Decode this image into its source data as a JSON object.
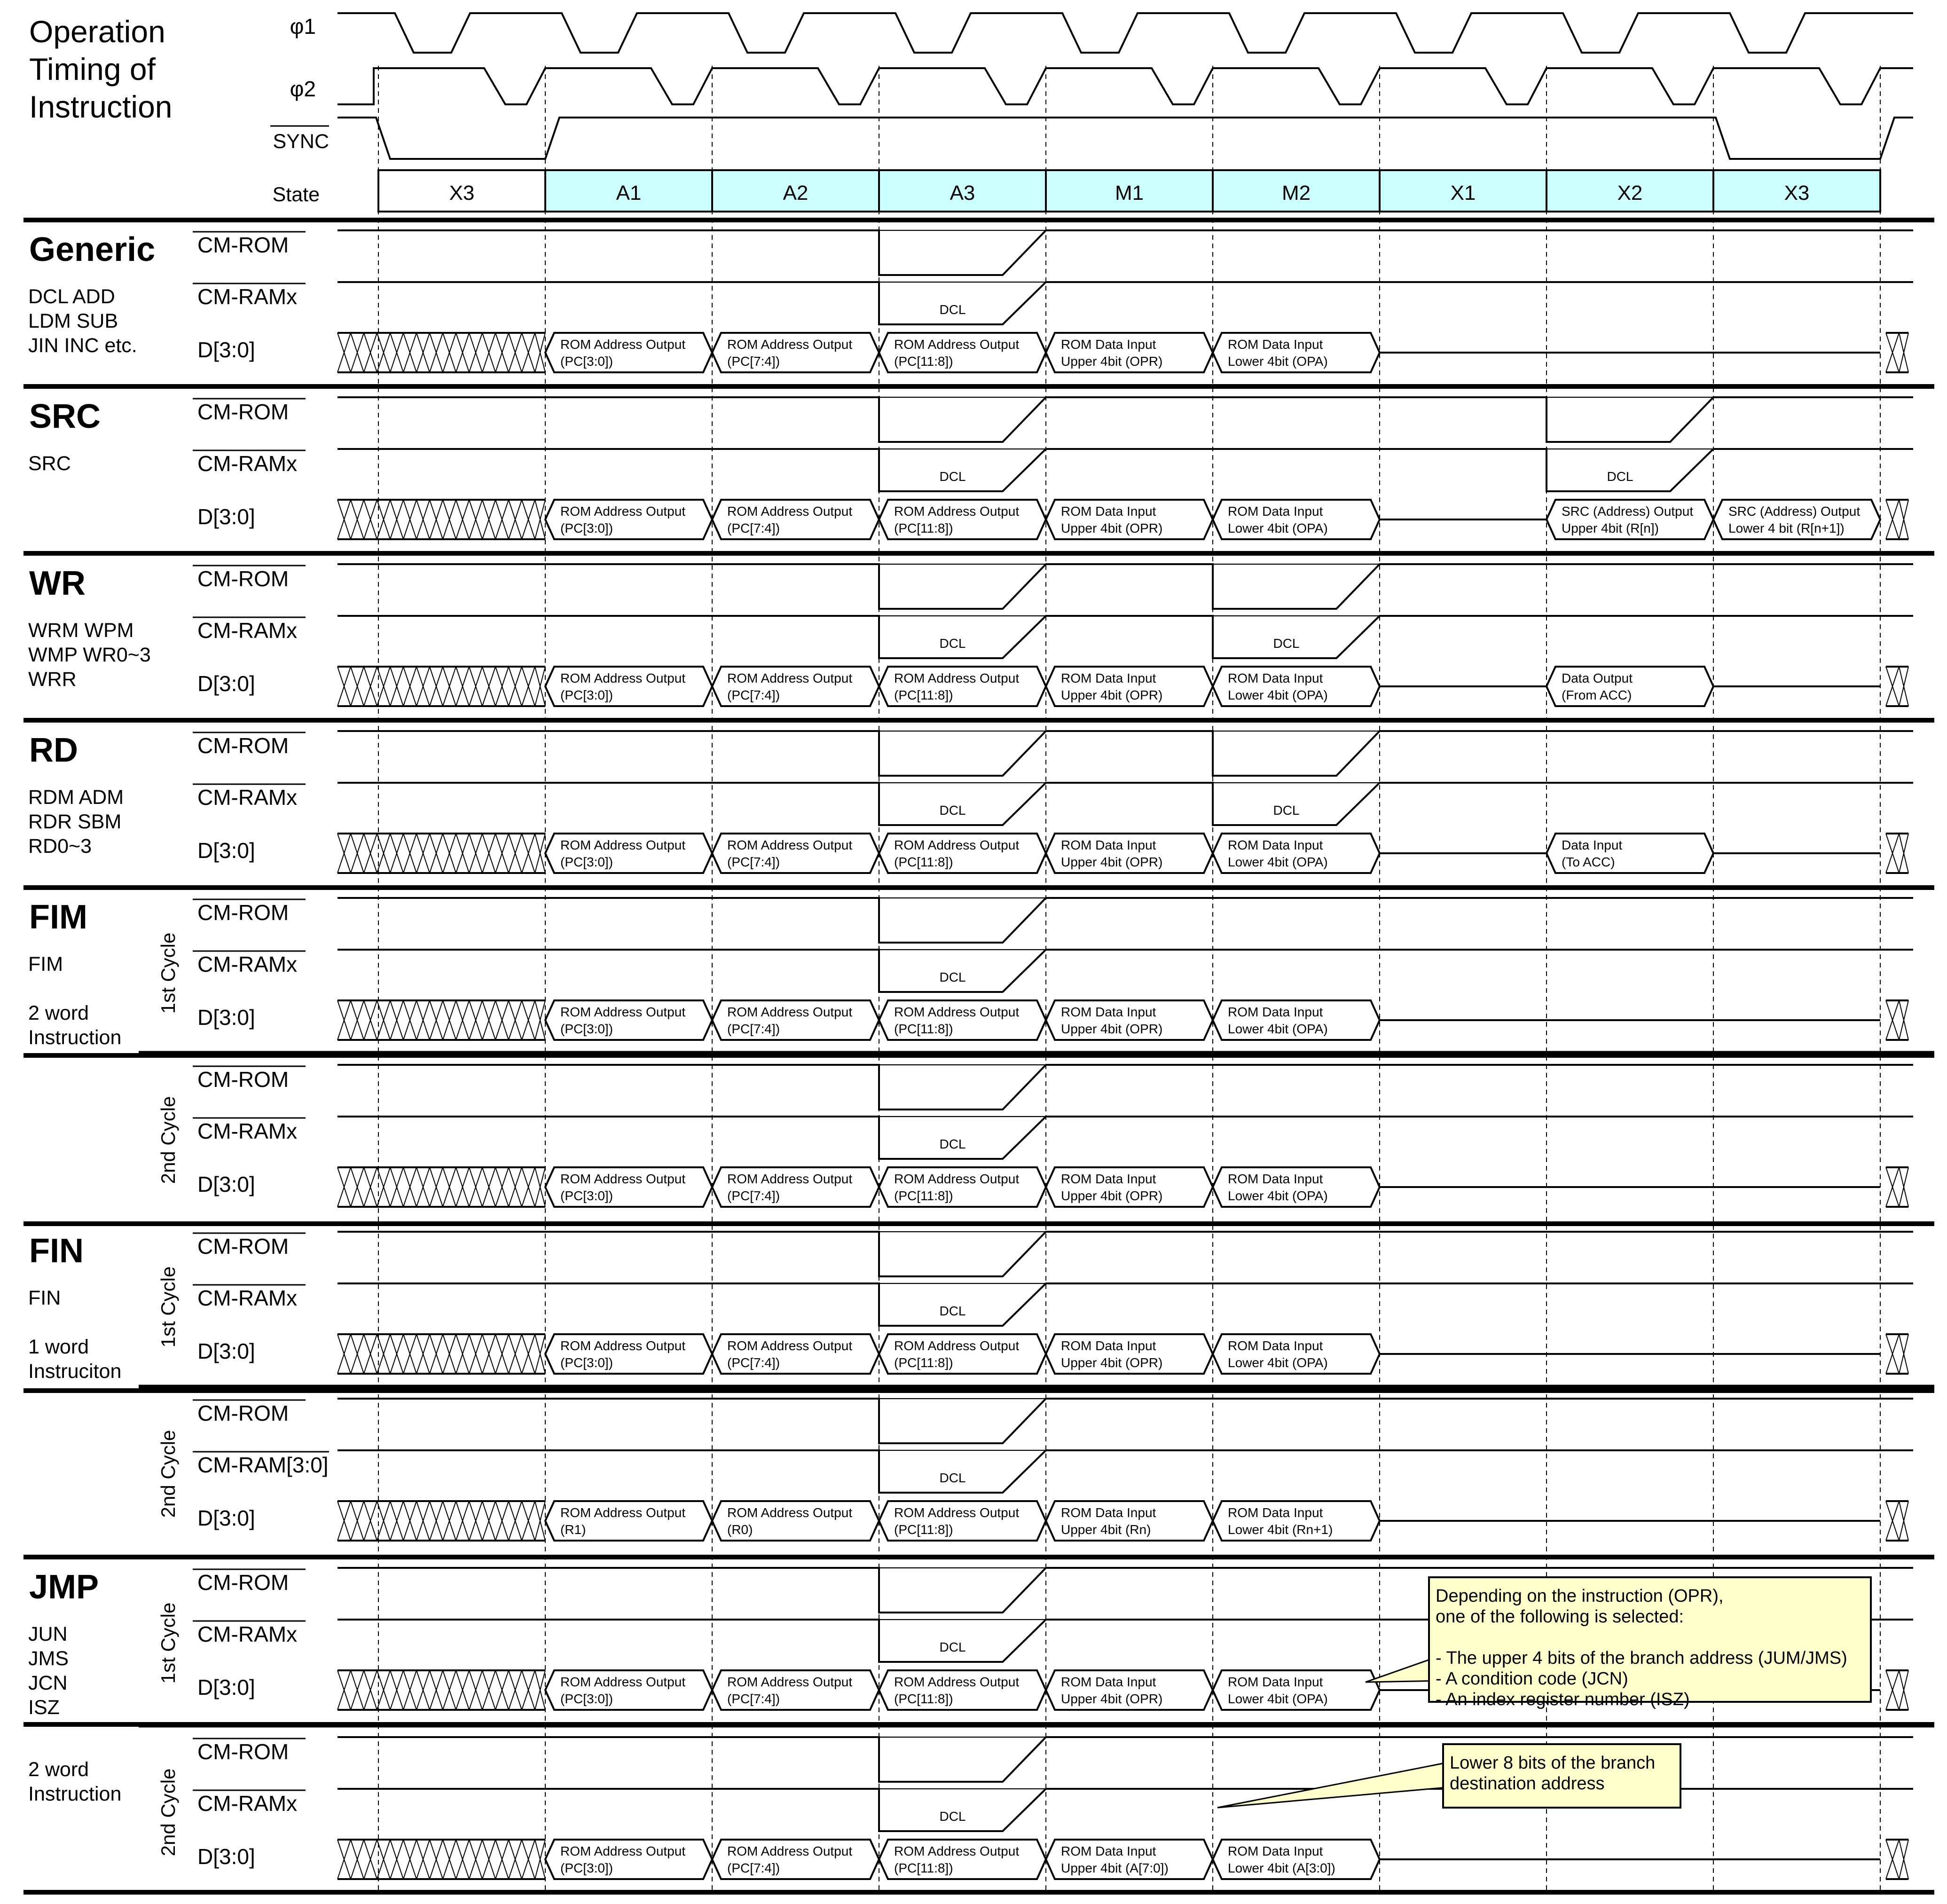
{
  "title": [
    "Operation",
    "Timing of",
    "Instruction"
  ],
  "clock_labels": {
    "phi1": "φ1",
    "phi2": "φ2",
    "sync": "SYNC",
    "state": "State"
  },
  "states": [
    "X3",
    "A1",
    "A2",
    "A3",
    "M1",
    "M2",
    "X1",
    "X2",
    "X3"
  ],
  "signal_names": {
    "cm_rom": "CM-ROM",
    "cm_ramx": "CM-RAMx",
    "cm_ram30": "CM-RAM[3:0]",
    "d": "D[3:0]"
  },
  "dcl": "DCL",
  "cycle_labels": {
    "first": "1st Cycle",
    "second": "2nd Cycle"
  },
  "blocks": [
    {
      "title": "Generic",
      "subs": [
        "DCL    ADD",
        "LDM    SUB",
        "JIN     INC etc."
      ],
      "rows": [
        {
          "ram": "CM-RAMx",
          "rom_low": [
            3
          ],
          "ram_low": [
            3
          ],
          "d": [
            [
              "ROM Address Output",
              "(PC[3:0])"
            ],
            [
              "ROM Address Output",
              "(PC[7:4])"
            ],
            [
              "ROM Address Output",
              "(PC[11:8])"
            ],
            [
              "ROM Data Input",
              "Upper 4bit (OPR)"
            ],
            [
              "ROM Data Input",
              "Lower 4bit (OPA)"
            ],
            null,
            null,
            null
          ]
        }
      ]
    },
    {
      "title": "SRC",
      "subs": [
        "SRC"
      ],
      "rows": [
        {
          "ram": "CM-RAMx",
          "rom_low": [
            3,
            7
          ],
          "ram_low": [
            3,
            7
          ],
          "d": [
            [
              "ROM Address Output",
              "(PC[3:0])"
            ],
            [
              "ROM Address Output",
              "(PC[7:4])"
            ],
            [
              "ROM Address Output",
              "(PC[11:8])"
            ],
            [
              "ROM Data Input",
              "Upper 4bit (OPR)"
            ],
            [
              "ROM Data Input",
              "Lower 4bit (OPA)"
            ],
            null,
            [
              "SRC (Address) Output",
              "Upper 4bit (R[n])"
            ],
            [
              "SRC (Address) Output",
              "Lower 4 bit (R[n+1])"
            ]
          ]
        }
      ]
    },
    {
      "title": "WR",
      "subs": [
        "WRM  WPM",
        "WMP  WR0~3",
        "WRR"
      ],
      "rows": [
        {
          "ram": "CM-RAMx",
          "rom_low": [
            3,
            5
          ],
          "ram_low": [
            3,
            5
          ],
          "d": [
            [
              "ROM Address Output",
              "(PC[3:0])"
            ],
            [
              "ROM Address Output",
              "(PC[7:4])"
            ],
            [
              "ROM Address Output",
              "(PC[11:8])"
            ],
            [
              "ROM Data Input",
              "Upper 4bit (OPR)"
            ],
            [
              "ROM Data Input",
              "Lower 4bit (OPA)"
            ],
            null,
            [
              "Data Output",
              "(From ACC)"
            ],
            null
          ]
        }
      ]
    },
    {
      "title": "RD",
      "subs": [
        "RDM      ADM",
        "RDR      SBM",
        "RD0~3"
      ],
      "rows": [
        {
          "ram": "CM-RAMx",
          "rom_low": [
            3,
            5
          ],
          "ram_low": [
            3,
            5
          ],
          "d": [
            [
              "ROM Address Output",
              "(PC[3:0])"
            ],
            [
              "ROM Address Output",
              "(PC[7:4])"
            ],
            [
              "ROM Address Output",
              "(PC[11:8])"
            ],
            [
              "ROM Data Input",
              "Upper 4bit (OPR)"
            ],
            [
              "ROM Data Input",
              "Lower 4bit (OPA)"
            ],
            null,
            [
              "Data Input",
              "(To ACC)"
            ],
            null
          ]
        }
      ]
    },
    {
      "title": "FIM",
      "subs": [
        "FIM",
        "",
        "2 word",
        "Instruction"
      ],
      "rows": [
        {
          "ram": "CM-RAMx",
          "rom_low": [
            3
          ],
          "ram_low": [
            3
          ],
          "d": [
            [
              "ROM Address Output",
              "(PC[3:0])"
            ],
            [
              "ROM Address Output",
              "(PC[7:4])"
            ],
            [
              "ROM Address Output",
              "(PC[11:8])"
            ],
            [
              "ROM Data Input",
              "Upper 4bit (OPR)"
            ],
            [
              "ROM Data Input",
              "Lower 4bit (OPA)"
            ],
            null,
            null,
            null
          ]
        },
        {
          "ram": "CM-RAMx",
          "rom_low": [
            3
          ],
          "ram_low": [
            3
          ],
          "d": [
            [
              "ROM Address Output",
              "(PC[3:0])"
            ],
            [
              "ROM Address Output",
              "(PC[7:4])"
            ],
            [
              "ROM Address Output",
              "(PC[11:8])"
            ],
            [
              "ROM Data Input",
              "Upper 4bit (OPR)"
            ],
            [
              "ROM Data Input",
              "Lower 4bit (OPA)"
            ],
            null,
            null,
            null
          ]
        }
      ]
    },
    {
      "title": "FIN",
      "subs": [
        "FIN",
        "",
        "1 word",
        "Instruciton"
      ],
      "rows": [
        {
          "ram": "CM-RAMx",
          "rom_low": [
            3
          ],
          "ram_low": [
            3
          ],
          "d": [
            [
              "ROM Address Output",
              "(PC[3:0])"
            ],
            [
              "ROM Address Output",
              "(PC[7:4])"
            ],
            [
              "ROM Address Output",
              "(PC[11:8])"
            ],
            [
              "ROM Data Input",
              "Upper 4bit (OPR)"
            ],
            [
              "ROM Data Input",
              "Lower 4bit (OPA)"
            ],
            null,
            null,
            null
          ]
        },
        {
          "ram": "CM-RAM[3:0]",
          "rom_low": [
            3
          ],
          "ram_low": [
            3
          ],
          "d": [
            [
              "ROM Address Output",
              "(R1)"
            ],
            [
              "ROM Address Output",
              "(R0)"
            ],
            [
              "ROM Address Output",
              "(PC[11:8])"
            ],
            [
              "ROM Data Input",
              "Upper 4bit (Rn)"
            ],
            [
              "ROM Data Input",
              "Lower 4bit (Rn+1)"
            ],
            null,
            null,
            null
          ]
        }
      ]
    },
    {
      "title": "JMP",
      "subs": [
        "JUN",
        "JMS",
        "JCN",
        "ISZ",
        "",
        "2 word",
        "Instruction"
      ],
      "rows": [
        {
          "ram": "CM-RAMx",
          "rom_low": [
            3
          ],
          "ram_low": [
            3
          ],
          "d": [
            [
              "ROM Address Output",
              "(PC[3:0])"
            ],
            [
              "ROM Address Output",
              "(PC[7:4])"
            ],
            [
              "ROM Address Output",
              "(PC[11:8])"
            ],
            [
              "ROM Data Input",
              "Upper 4bit (OPR)"
            ],
            [
              "ROM Data Input",
              "Lower 4bit (OPA)"
            ],
            null,
            null,
            null
          ]
        },
        {
          "ram": "CM-RAMx",
          "rom_low": [
            3
          ],
          "ram_low": [
            3
          ],
          "d": [
            [
              "ROM Address Output",
              "(PC[3:0])"
            ],
            [
              "ROM Address Output",
              "(PC[7:4])"
            ],
            [
              "ROM Address Output",
              "(PC[11:8])"
            ],
            [
              "ROM Data Input",
              "Upper 4bit (A[7:0])"
            ],
            [
              "ROM Data Input",
              "Lower 4bit (A[3:0])"
            ],
            null,
            null,
            null
          ]
        }
      ]
    }
  ],
  "notes": {
    "jmp1": [
      "Depending on the instruction (OPR),",
      "one of the following is selected:",
      "",
      "- The upper 4 bits of the branch address (JUM/JMS)",
      "- A condition code (JCN)",
      "- An index register number (ISZ)"
    ],
    "jmp2": [
      "Lower 8 bits of the branch",
      "destination address"
    ]
  },
  "colors": {
    "state_fill": "#ccffff",
    "note_fill": "#ffffcc",
    "line": "#000000",
    "background": "#ffffff"
  }
}
